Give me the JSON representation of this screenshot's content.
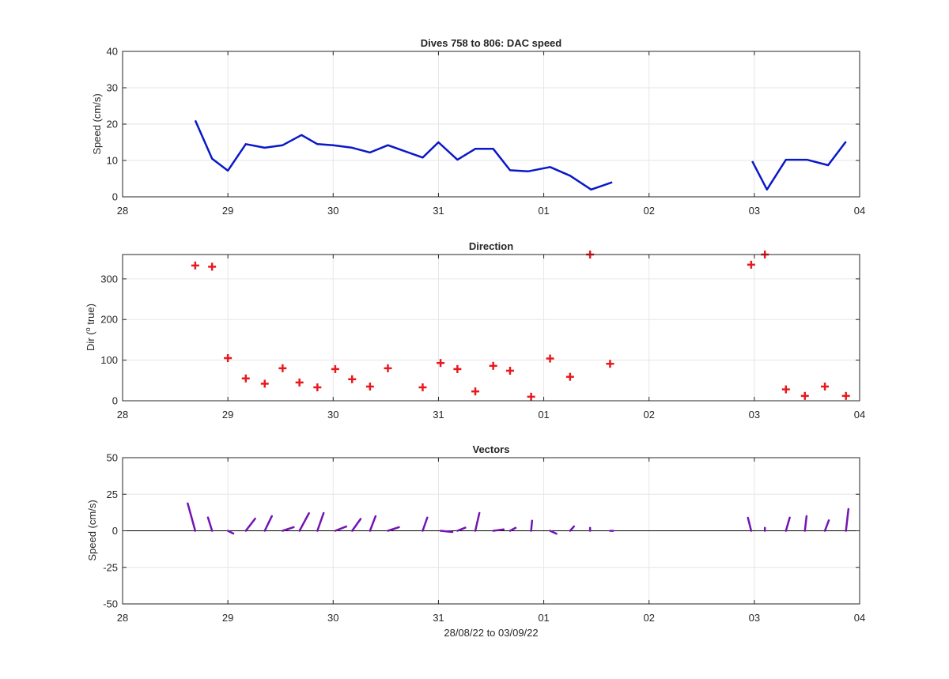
{
  "x_ticks": [
    "28",
    "29",
    "30",
    "31",
    "01",
    "02",
    "03",
    "04"
  ],
  "xlim": [
    0,
    7
  ],
  "xlabel": "28/08/22 to 03/09/22",
  "colors": {
    "speed": "#0a18c8",
    "direction": "#e8191e",
    "vectors": "#7314b3",
    "grid": "#e6e6e6",
    "axis": "#262626"
  },
  "chart_data": [
    {
      "type": "line",
      "title": "Dives 758 to 806: DAC speed",
      "ylabel": "Speed (cm/s)",
      "ylim": [
        0,
        40
      ],
      "yticks": [
        "0",
        "10",
        "20",
        "30",
        "40"
      ],
      "grid": true,
      "series": [
        {
          "x": [
            0.69,
            0.85,
            1.0,
            1.17,
            1.35,
            1.52,
            1.7,
            1.85,
            2.0,
            2.18,
            2.35,
            2.52,
            2.85,
            3.0,
            3.18,
            3.35,
            3.52,
            3.68,
            3.85,
            4.06,
            4.25,
            4.45,
            4.65
          ],
          "y": [
            21,
            10.5,
            7.2,
            14.5,
            13.5,
            14.2,
            17,
            14.5,
            14.2,
            13.5,
            12.2,
            14.2,
            10.8,
            15,
            10.2,
            13.2,
            13.2,
            7.3,
            7,
            8.2,
            5.8,
            2,
            4
          ]
        },
        {
          "x": [
            5.98,
            6.12,
            6.3,
            6.5,
            6.7,
            6.87
          ],
          "y": [
            9.8,
            2,
            10.2,
            10.2,
            8.7,
            15.2
          ]
        }
      ]
    },
    {
      "type": "scatter",
      "title": "Direction",
      "ylabel": "Dir (° true)",
      "ylabel_unit_sup": "o",
      "ylabel_parts": [
        "Dir (",
        "o",
        " true)"
      ],
      "ylim": [
        0,
        360
      ],
      "yticks": [
        "0",
        "100",
        "200",
        "300"
      ],
      "grid": true,
      "x": [
        0.69,
        0.85,
        1.0,
        1.17,
        1.35,
        1.52,
        1.68,
        1.85,
        2.02,
        2.18,
        2.35,
        2.52,
        2.85,
        3.02,
        3.18,
        3.35,
        3.52,
        3.68,
        3.88,
        4.06,
        4.25,
        4.44,
        4.63,
        5.97,
        6.1,
        6.3,
        6.48,
        6.67,
        6.87
      ],
      "y": [
        333,
        330,
        105,
        55,
        42,
        80,
        45,
        33,
        78,
        53,
        35,
        80,
        33,
        93,
        78,
        23,
        86,
        74,
        10,
        104,
        59,
        360,
        91,
        335,
        360,
        28,
        12,
        35,
        12
      ]
    },
    {
      "type": "vector",
      "title": "Vectors",
      "ylabel": "Speed (cm/s)",
      "ylim": [
        -50,
        50
      ],
      "yticks": [
        "-50",
        "-25",
        "0",
        "25",
        "50"
      ],
      "grid": true,
      "x": [
        0.69,
        0.85,
        1.0,
        1.17,
        1.35,
        1.52,
        1.68,
        1.85,
        2.02,
        2.18,
        2.35,
        2.52,
        2.85,
        3.02,
        3.18,
        3.35,
        3.52,
        3.68,
        3.88,
        4.06,
        4.25,
        4.44,
        4.63,
        5.97,
        6.1,
        6.3,
        6.48,
        6.67,
        6.87
      ],
      "speed": [
        21,
        10.5,
        7.2,
        14.5,
        13.5,
        14.2,
        17,
        14.5,
        14.2,
        13.5,
        12.2,
        14.2,
        10.8,
        15,
        10.2,
        13.2,
        13.2,
        7.3,
        7,
        8.2,
        5.8,
        2,
        4,
        9.8,
        2,
        10.2,
        10.2,
        8.7,
        15.2
      ],
      "dir": [
        333,
        330,
        105,
        55,
        42,
        80,
        45,
        33,
        78,
        53,
        35,
        80,
        33,
        93,
        78,
        23,
        86,
        74,
        10,
        104,
        59,
        360,
        91,
        335,
        360,
        28,
        12,
        35,
        12
      ]
    }
  ]
}
